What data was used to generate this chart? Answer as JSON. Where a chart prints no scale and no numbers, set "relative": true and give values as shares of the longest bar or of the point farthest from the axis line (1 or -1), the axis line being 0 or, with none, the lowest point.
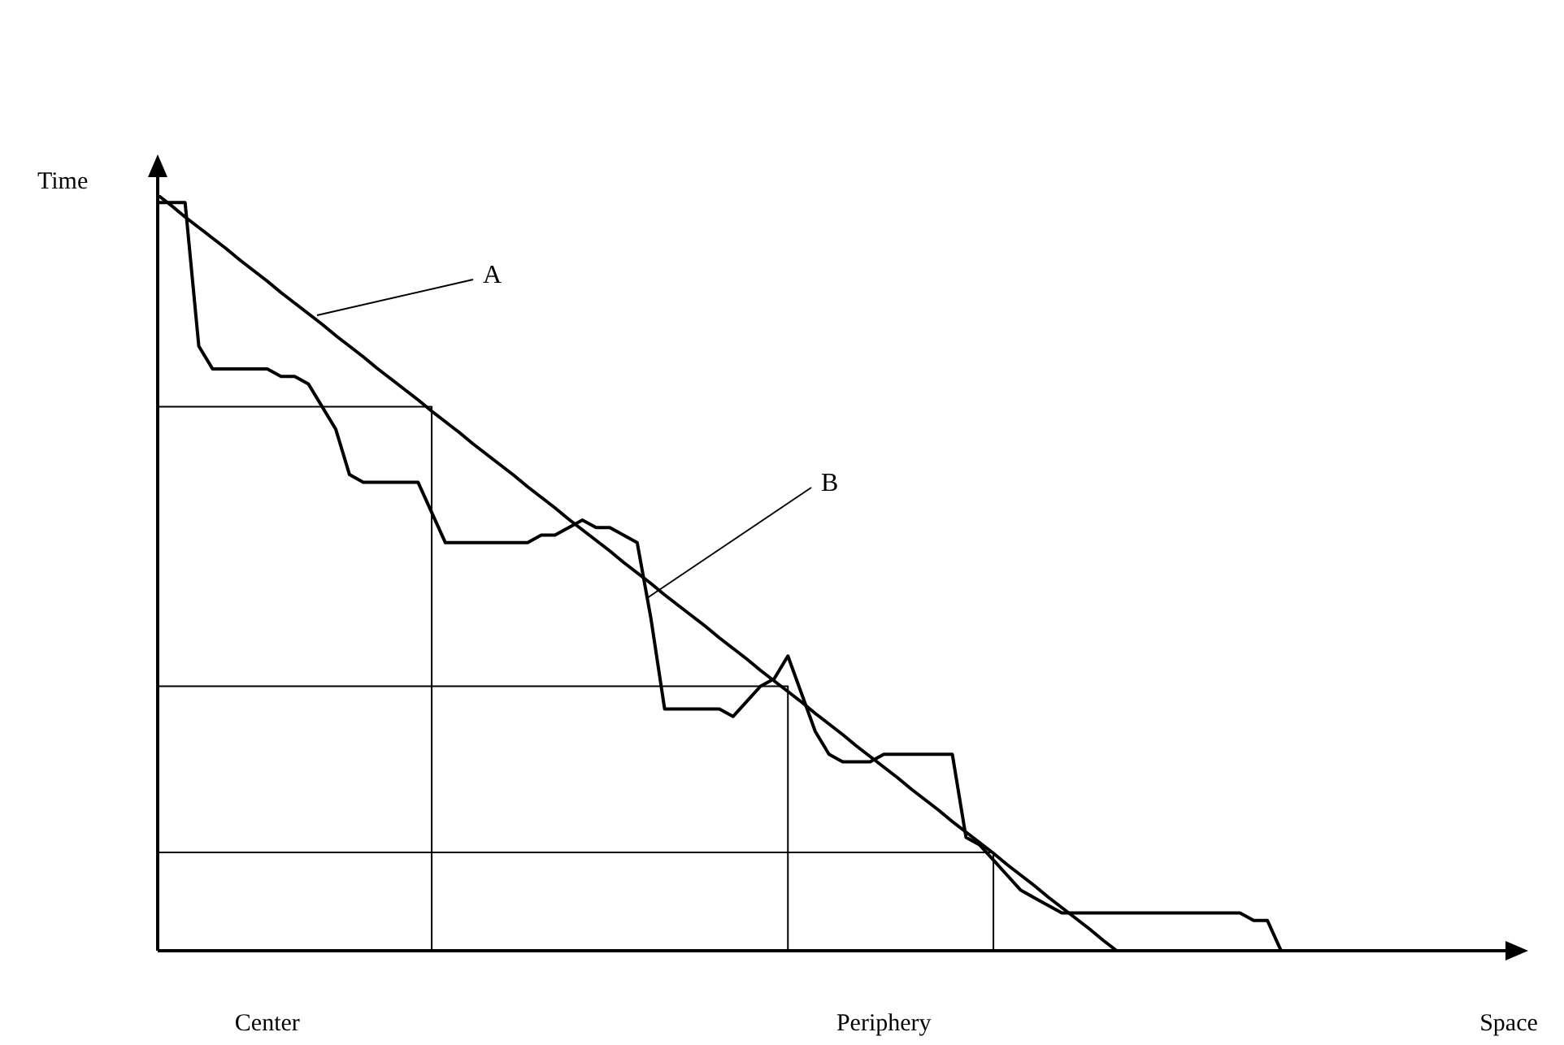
{
  "chart_data": {
    "type": "line",
    "relative": true,
    "ylabel": "Time",
    "marker": "none",
    "line_style": "solid",
    "categories": [
      null,
      null,
      null,
      null,
      null,
      null,
      null,
      null,
      "Center",
      null,
      null,
      null,
      null,
      null,
      null,
      null,
      null,
      null,
      null,
      null,
      null,
      null,
      null,
      null,
      null,
      null,
      null,
      null,
      null,
      null,
      null,
      null,
      null,
      null,
      null,
      null,
      null,
      null,
      null,
      null,
      null,
      null,
      null,
      null,
      null,
      null,
      null,
      null,
      null,
      null,
      null,
      null,
      null,
      "Periphery",
      null,
      null,
      null,
      null,
      null,
      null,
      null,
      null,
      null,
      null,
      null,
      null,
      null,
      null,
      null,
      null,
      null,
      null,
      null,
      null,
      null,
      null,
      null,
      null,
      null,
      null,
      null,
      null,
      null
    ],
    "series": [
      {
        "type": "line",
        "color": "#000000",
        "values": [
          1,
          0.986,
          0.971,
          0.957,
          0.943,
          0.929,
          0.914,
          0.9,
          0.886,
          0.871,
          0.857,
          0.843,
          0.829,
          0.814,
          0.8,
          0.786,
          0.771,
          0.757,
          0.743,
          0.729,
          0.714,
          0.7,
          0.686,
          0.671,
          0.657,
          0.643,
          0.629,
          0.614,
          0.6,
          0.586,
          0.571,
          0.557,
          0.543,
          0.529,
          0.514,
          0.5,
          0.486,
          0.471,
          0.457,
          0.443,
          0.429,
          0.414,
          0.4,
          0.386,
          0.371,
          0.357,
          0.343,
          0.329,
          0.314,
          0.3,
          0.286,
          0.271,
          0.257,
          0.243,
          0.229,
          0.214,
          0.2,
          0.186,
          0.171,
          0.157,
          0.143,
          0.129,
          0.114,
          0.1,
          0.086,
          0.071,
          0.057,
          0.043,
          0.029,
          0.014,
          0,
          null,
          null,
          null,
          null,
          null,
          null,
          null,
          null,
          null,
          null,
          null,
          null
        ]
      },
      {
        "type": "line",
        "color": "#000000",
        "values": [
          0.99,
          0.99,
          0.99,
          0.8,
          0.77,
          0.77,
          0.77,
          0.77,
          0.77,
          0.76,
          0.76,
          0.75,
          0.72,
          0.69,
          0.63,
          0.62,
          0.62,
          0.62,
          0.62,
          0.62,
          0.58,
          0.54,
          0.54,
          0.54,
          0.54,
          0.54,
          0.54,
          0.54,
          0.55,
          0.55,
          0.56,
          0.57,
          0.56,
          0.56,
          0.55,
          0.54,
          0.44,
          0.32,
          0.32,
          0.32,
          0.32,
          0.32,
          0.31,
          0.33,
          0.35,
          0.36,
          0.39,
          0.34,
          0.29,
          0.26,
          0.25,
          0.25,
          0.25,
          0.26,
          0.26,
          0.26,
          0.26,
          0.26,
          0.26,
          0.15,
          0.14,
          0.12,
          0.1,
          0.08,
          0.07,
          0.06,
          0.05,
          0.05,
          0.05,
          0.05,
          0.05,
          0.05,
          0.05,
          0.05,
          0.05,
          0.05,
          0.05,
          0.05,
          0.05,
          0.05,
          0.04,
          0.04,
          0
        ]
      },
      {
        "type": "step",
        "color": "#000000",
        "values": [
          0.72,
          0.72,
          0.72,
          0.72,
          0.72,
          0.72,
          0.72,
          0.72,
          0.72,
          0.72,
          0.72,
          0.72,
          0.72,
          0.72,
          0.72,
          0.72,
          0.72,
          0.72,
          0.72,
          0.72,
          0,
          null,
          null,
          null,
          null,
          null,
          null,
          null,
          null,
          null,
          null,
          null,
          null,
          null,
          null,
          null,
          null,
          null,
          null,
          null,
          null,
          null,
          null,
          null,
          null,
          null,
          null,
          null,
          null,
          null,
          null,
          null,
          null,
          null,
          null,
          null,
          null,
          null,
          null,
          null,
          null,
          null,
          null,
          null,
          null,
          null,
          null,
          null,
          null,
          null,
          null,
          null,
          null,
          null,
          null,
          null,
          null,
          null,
          null,
          null,
          null,
          null,
          null
        ]
      },
      {
        "type": "step",
        "color": "#000000",
        "values": [
          0.35,
          0.35,
          0.35,
          0.35,
          0.35,
          0.35,
          0.35,
          0.35,
          0.35,
          0.35,
          0.35,
          0.35,
          0.35,
          0.35,
          0.35,
          0.35,
          0.35,
          0.35,
          0.35,
          0.35,
          0.35,
          0.35,
          0.35,
          0.35,
          0.35,
          0.35,
          0.35,
          0.35,
          0.35,
          0.35,
          0.35,
          0.35,
          0.35,
          0.35,
          0.35,
          0.35,
          0.35,
          0.35,
          0.35,
          0.35,
          0.35,
          0.35,
          0.35,
          0.35,
          0.35,
          0.35,
          0,
          null,
          null,
          null,
          null,
          null,
          null,
          null,
          null,
          null,
          null,
          null,
          null,
          null,
          null,
          null,
          null,
          null,
          null,
          null,
          null,
          null,
          null,
          null,
          null,
          null,
          null,
          null,
          null,
          null,
          null,
          null,
          null,
          null,
          null,
          null,
          null
        ]
      },
      {
        "type": "step",
        "color": "#000000",
        "values": [
          0.13,
          0.13,
          0.13,
          0.13,
          0.13,
          0.13,
          0.13,
          0.13,
          0.13,
          0.13,
          0.13,
          0.13,
          0.13,
          0.13,
          0.13,
          0.13,
          0.13,
          0.13,
          0.13,
          0.13,
          0.13,
          0.13,
          0.13,
          0.13,
          0.13,
          0.13,
          0.13,
          0.13,
          0.13,
          0.13,
          0.13,
          0.13,
          0.13,
          0.13,
          0.13,
          0.13,
          0.13,
          0.13,
          0.13,
          0.13,
          0.13,
          0.13,
          0.13,
          0.13,
          0.13,
          0.13,
          0.13,
          0.13,
          0.13,
          0.13,
          0.13,
          0.13,
          0.13,
          0.13,
          0.13,
          0.13,
          0.13,
          0.13,
          0.13,
          0.13,
          0.13,
          0,
          null,
          null,
          null,
          null,
          null,
          null,
          null,
          null,
          null,
          null,
          null,
          null,
          null,
          null,
          null,
          null,
          null,
          null,
          null,
          null,
          null
        ]
      }
    ],
    "annotations": [
      "A",
      "B",
      "Space"
    ]
  }
}
